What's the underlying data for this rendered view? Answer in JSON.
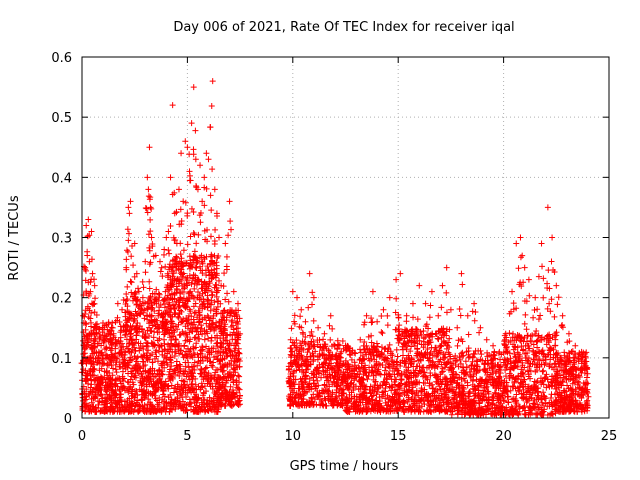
{
  "chart_data": {
    "type": "scatter",
    "title": "Day 006 of 2021, Rate Of TEC Index for receiver iqal",
    "xlabel": "GPS time / hours",
    "ylabel": "ROTI / TECUs",
    "xlim": [
      0,
      25
    ],
    "ylim": [
      0,
      0.6
    ],
    "x_ticks": [
      0,
      5,
      10,
      15,
      20,
      25
    ],
    "y_ticks": [
      0,
      0.1,
      0.2,
      0.3,
      0.4,
      0.5,
      0.6
    ],
    "x_tick_labels": [
      "0",
      "5",
      "10",
      "15",
      "20",
      "25"
    ],
    "y_tick_labels": [
      "0",
      "0.1",
      "0.2",
      "0.3",
      "0.4",
      "0.5",
      "0.6"
    ],
    "grid": true,
    "marker": "+",
    "color": "#ff0000",
    "data_gaps_hours": [
      [
        7.5,
        9.8
      ]
    ],
    "series": [
      {
        "name": "ROTI",
        "points": [
          [
            0.05,
            0.17
          ],
          [
            0.1,
            0.12
          ],
          [
            0.15,
            0.25
          ],
          [
            0.2,
            0.32
          ],
          [
            0.25,
            0.27
          ],
          [
            0.3,
            0.33
          ],
          [
            0.35,
            0.26
          ],
          [
            0.4,
            0.21
          ],
          [
            0.45,
            0.31
          ],
          [
            0.5,
            0.24
          ],
          [
            0.55,
            0.19
          ],
          [
            0.6,
            0.22
          ],
          [
            0.7,
            0.15
          ],
          [
            0.8,
            0.11
          ],
          [
            1.0,
            0.13
          ],
          [
            1.2,
            0.09
          ],
          [
            1.5,
            0.14
          ],
          [
            1.7,
            0.19
          ],
          [
            1.9,
            0.18
          ],
          [
            2.1,
            0.25
          ],
          [
            2.2,
            0.35
          ],
          [
            2.25,
            0.34
          ],
          [
            2.3,
            0.36
          ],
          [
            2.5,
            0.29
          ],
          [
            2.6,
            0.24
          ],
          [
            2.7,
            0.21
          ],
          [
            2.9,
            0.19
          ],
          [
            3.0,
            0.26
          ],
          [
            3.1,
            0.4
          ],
          [
            3.15,
            0.38
          ],
          [
            3.2,
            0.45
          ],
          [
            3.25,
            0.35
          ],
          [
            3.3,
            0.3
          ],
          [
            3.5,
            0.27
          ],
          [
            3.7,
            0.26
          ],
          [
            3.9,
            0.28
          ],
          [
            4.0,
            0.3
          ],
          [
            4.1,
            0.31
          ],
          [
            4.2,
            0.4
          ],
          [
            4.3,
            0.52
          ],
          [
            4.4,
            0.34
          ],
          [
            4.5,
            0.29
          ],
          [
            4.6,
            0.38
          ],
          [
            4.7,
            0.44
          ],
          [
            4.8,
            0.36
          ],
          [
            4.9,
            0.46
          ],
          [
            5.0,
            0.45
          ],
          [
            5.1,
            0.41
          ],
          [
            5.2,
            0.49
          ],
          [
            5.3,
            0.55
          ],
          [
            5.4,
            0.43
          ],
          [
            5.5,
            0.38
          ],
          [
            5.6,
            0.42
          ],
          [
            5.7,
            0.36
          ],
          [
            5.8,
            0.4
          ],
          [
            5.9,
            0.44
          ],
          [
            6.0,
            0.43
          ],
          [
            6.1,
            0.37
          ],
          [
            6.2,
            0.56
          ],
          [
            6.3,
            0.38
          ],
          [
            6.4,
            0.34
          ],
          [
            6.5,
            0.3
          ],
          [
            6.6,
            0.22
          ],
          [
            6.8,
            0.29
          ],
          [
            7.0,
            0.36
          ],
          [
            7.2,
            0.21
          ],
          [
            7.4,
            0.19
          ],
          [
            9.9,
            0.13
          ],
          [
            10.0,
            0.21
          ],
          [
            10.2,
            0.2
          ],
          [
            10.4,
            0.18
          ],
          [
            10.6,
            0.16
          ],
          [
            10.8,
            0.24
          ],
          [
            11.0,
            0.2
          ],
          [
            11.2,
            0.15
          ],
          [
            11.5,
            0.14
          ],
          [
            11.8,
            0.17
          ],
          [
            12.0,
            0.12
          ],
          [
            12.3,
            0.11
          ],
          [
            12.6,
            0.09
          ],
          [
            12.9,
            0.08
          ],
          [
            13.2,
            0.13
          ],
          [
            13.5,
            0.17
          ],
          [
            13.8,
            0.21
          ],
          [
            14.0,
            0.16
          ],
          [
            14.3,
            0.18
          ],
          [
            14.6,
            0.2
          ],
          [
            14.9,
            0.23
          ],
          [
            15.1,
            0.24
          ],
          [
            15.4,
            0.17
          ],
          [
            15.7,
            0.19
          ],
          [
            16.0,
            0.22
          ],
          [
            16.3,
            0.19
          ],
          [
            16.6,
            0.21
          ],
          [
            16.9,
            0.17
          ],
          [
            17.1,
            0.22
          ],
          [
            17.3,
            0.25
          ],
          [
            17.5,
            0.18
          ],
          [
            17.8,
            0.15
          ],
          [
            18.0,
            0.24
          ],
          [
            18.3,
            0.17
          ],
          [
            18.6,
            0.19
          ],
          [
            18.9,
            0.15
          ],
          [
            19.2,
            0.13
          ],
          [
            19.5,
            0.12
          ],
          [
            19.8,
            0.11
          ],
          [
            20.1,
            0.14
          ],
          [
            20.4,
            0.21
          ],
          [
            20.6,
            0.29
          ],
          [
            20.8,
            0.3
          ],
          [
            21.0,
            0.25
          ],
          [
            21.2,
            0.23
          ],
          [
            21.5,
            0.2
          ],
          [
            21.8,
            0.29
          ],
          [
            22.1,
            0.35
          ],
          [
            22.3,
            0.3
          ],
          [
            22.5,
            0.22
          ],
          [
            22.8,
            0.17
          ],
          [
            23.1,
            0.14
          ],
          [
            23.4,
            0.12
          ],
          [
            23.7,
            0.11
          ],
          [
            23.9,
            0.1
          ]
        ],
        "density_bands": [
          {
            "x_range": [
              0.0,
              2.0
            ],
            "y_range": [
              0.01,
              0.16
            ],
            "count": 420
          },
          {
            "x_range": [
              2.0,
              4.0
            ],
            "y_range": [
              0.01,
              0.21
            ],
            "count": 520
          },
          {
            "x_range": [
              4.0,
              6.5
            ],
            "y_range": [
              0.01,
              0.27
            ],
            "count": 750
          },
          {
            "x_range": [
              6.5,
              7.5
            ],
            "y_range": [
              0.02,
              0.18
            ],
            "count": 260
          },
          {
            "x_range": [
              9.8,
              12.5
            ],
            "y_range": [
              0.02,
              0.13
            ],
            "count": 430
          },
          {
            "x_range": [
              12.5,
              15.0
            ],
            "y_range": [
              0.01,
              0.12
            ],
            "count": 420
          },
          {
            "x_range": [
              15.0,
              17.5
            ],
            "y_range": [
              0.01,
              0.15
            ],
            "count": 480
          },
          {
            "x_range": [
              17.5,
              20.0
            ],
            "y_range": [
              0.005,
              0.11
            ],
            "count": 430
          },
          {
            "x_range": [
              20.0,
              22.5
            ],
            "y_range": [
              0.005,
              0.14
            ],
            "count": 440
          },
          {
            "x_range": [
              22.5,
              24.0
            ],
            "y_range": [
              0.01,
              0.11
            ],
            "count": 300
          }
        ]
      }
    ]
  }
}
